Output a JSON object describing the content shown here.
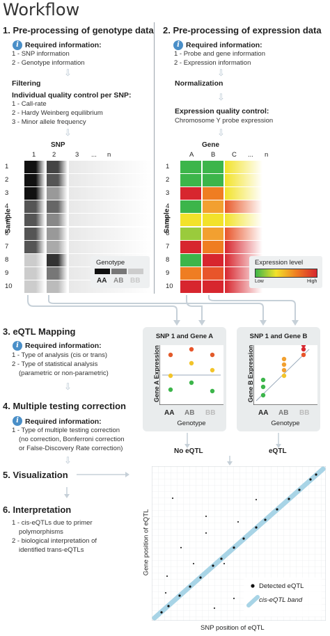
{
  "title": "Workflow",
  "section1": {
    "heading": "1.  Pre-processing of genotype data",
    "required_label": "Required information:",
    "required_items": [
      "1 - SNP information",
      "2 - Genotype information"
    ],
    "filtering": "Filtering",
    "qc_title": "Individual quality control per SNP:",
    "qc_items": [
      "1 - Call-rate",
      "2 - Hardy Weinberg equilibrium",
      "3 - Minor allele frequency"
    ]
  },
  "section2": {
    "heading": "2.  Pre-processing of expression data",
    "required_label": "Required information:",
    "required_items": [
      "1 - Probe and gene information",
      "2 - Expression information"
    ],
    "normalization": "Normalization",
    "qc_title": "Expression quality control:",
    "qc_item": "Chromosome Y probe expression"
  },
  "snp_matrix": {
    "title": "SNP",
    "cols": [
      "1",
      "2",
      "3",
      "...",
      "n"
    ],
    "rows": [
      "1",
      "2",
      "3",
      "4",
      "5",
      "6",
      "7",
      "8",
      "9",
      "10"
    ],
    "axis": "Sample",
    "legend_title": "Genotype",
    "legend": [
      "AA",
      "AB",
      "BB"
    ]
  },
  "gene_matrix": {
    "title": "Gene",
    "cols": [
      "A",
      "B",
      "C",
      "...",
      "n"
    ],
    "rows": [
      "1",
      "2",
      "3",
      "4",
      "5",
      "6",
      "7",
      "8",
      "9",
      "10"
    ],
    "axis": "Sample",
    "legend_title": "Expression level",
    "legend_low": "Low",
    "legend_high": "High"
  },
  "section3": {
    "heading": "3.  eQTL Mapping",
    "required_label": "Required information:",
    "items": [
      "1 - Type of analysis (cis or trans)",
      "2 - Type of statistical analysis",
      "(parametric or non-parametric)"
    ]
  },
  "section4": {
    "heading": "4.  Multiple testing correction",
    "required_label": "Required information:",
    "items": [
      "1 - Type of multiple testing correction",
      "(no correction, Bonferroni correction",
      "or False-Discovery Rate correction)"
    ]
  },
  "section5": {
    "heading": "5.  Visualization"
  },
  "section6": {
    "heading": "6.  Interpretation",
    "items": [
      "1 - cis-eQTLs due to primer",
      "polymorphisms",
      "2 - biological interpretation of",
      "identified trans-eQTLs"
    ]
  },
  "panelA": {
    "title": "SNP 1 and Gene A",
    "ylabel": "Gene A Expression",
    "xlabel": "Genotype",
    "groups": [
      "AA",
      "AB",
      "BB"
    ],
    "result": "No eQTL"
  },
  "panelB": {
    "title": "SNP 1 and Gene B",
    "ylabel": "Gene B Expression",
    "xlabel": "Genotype",
    "groups": [
      "AA",
      "AB",
      "BB"
    ],
    "result": "eQTL"
  },
  "eqtl_plot": {
    "xlabel": "SNP position of eQTL",
    "ylabel": "Gene position of eQTL",
    "legend_detected": "Detected eQTL",
    "legend_band": "cis-eQTL band"
  },
  "colors": {
    "arrow": "#b9c7d3",
    "info": "#4a8fc8",
    "panel": "#e9eced",
    "band": "#a8d4e6"
  }
}
